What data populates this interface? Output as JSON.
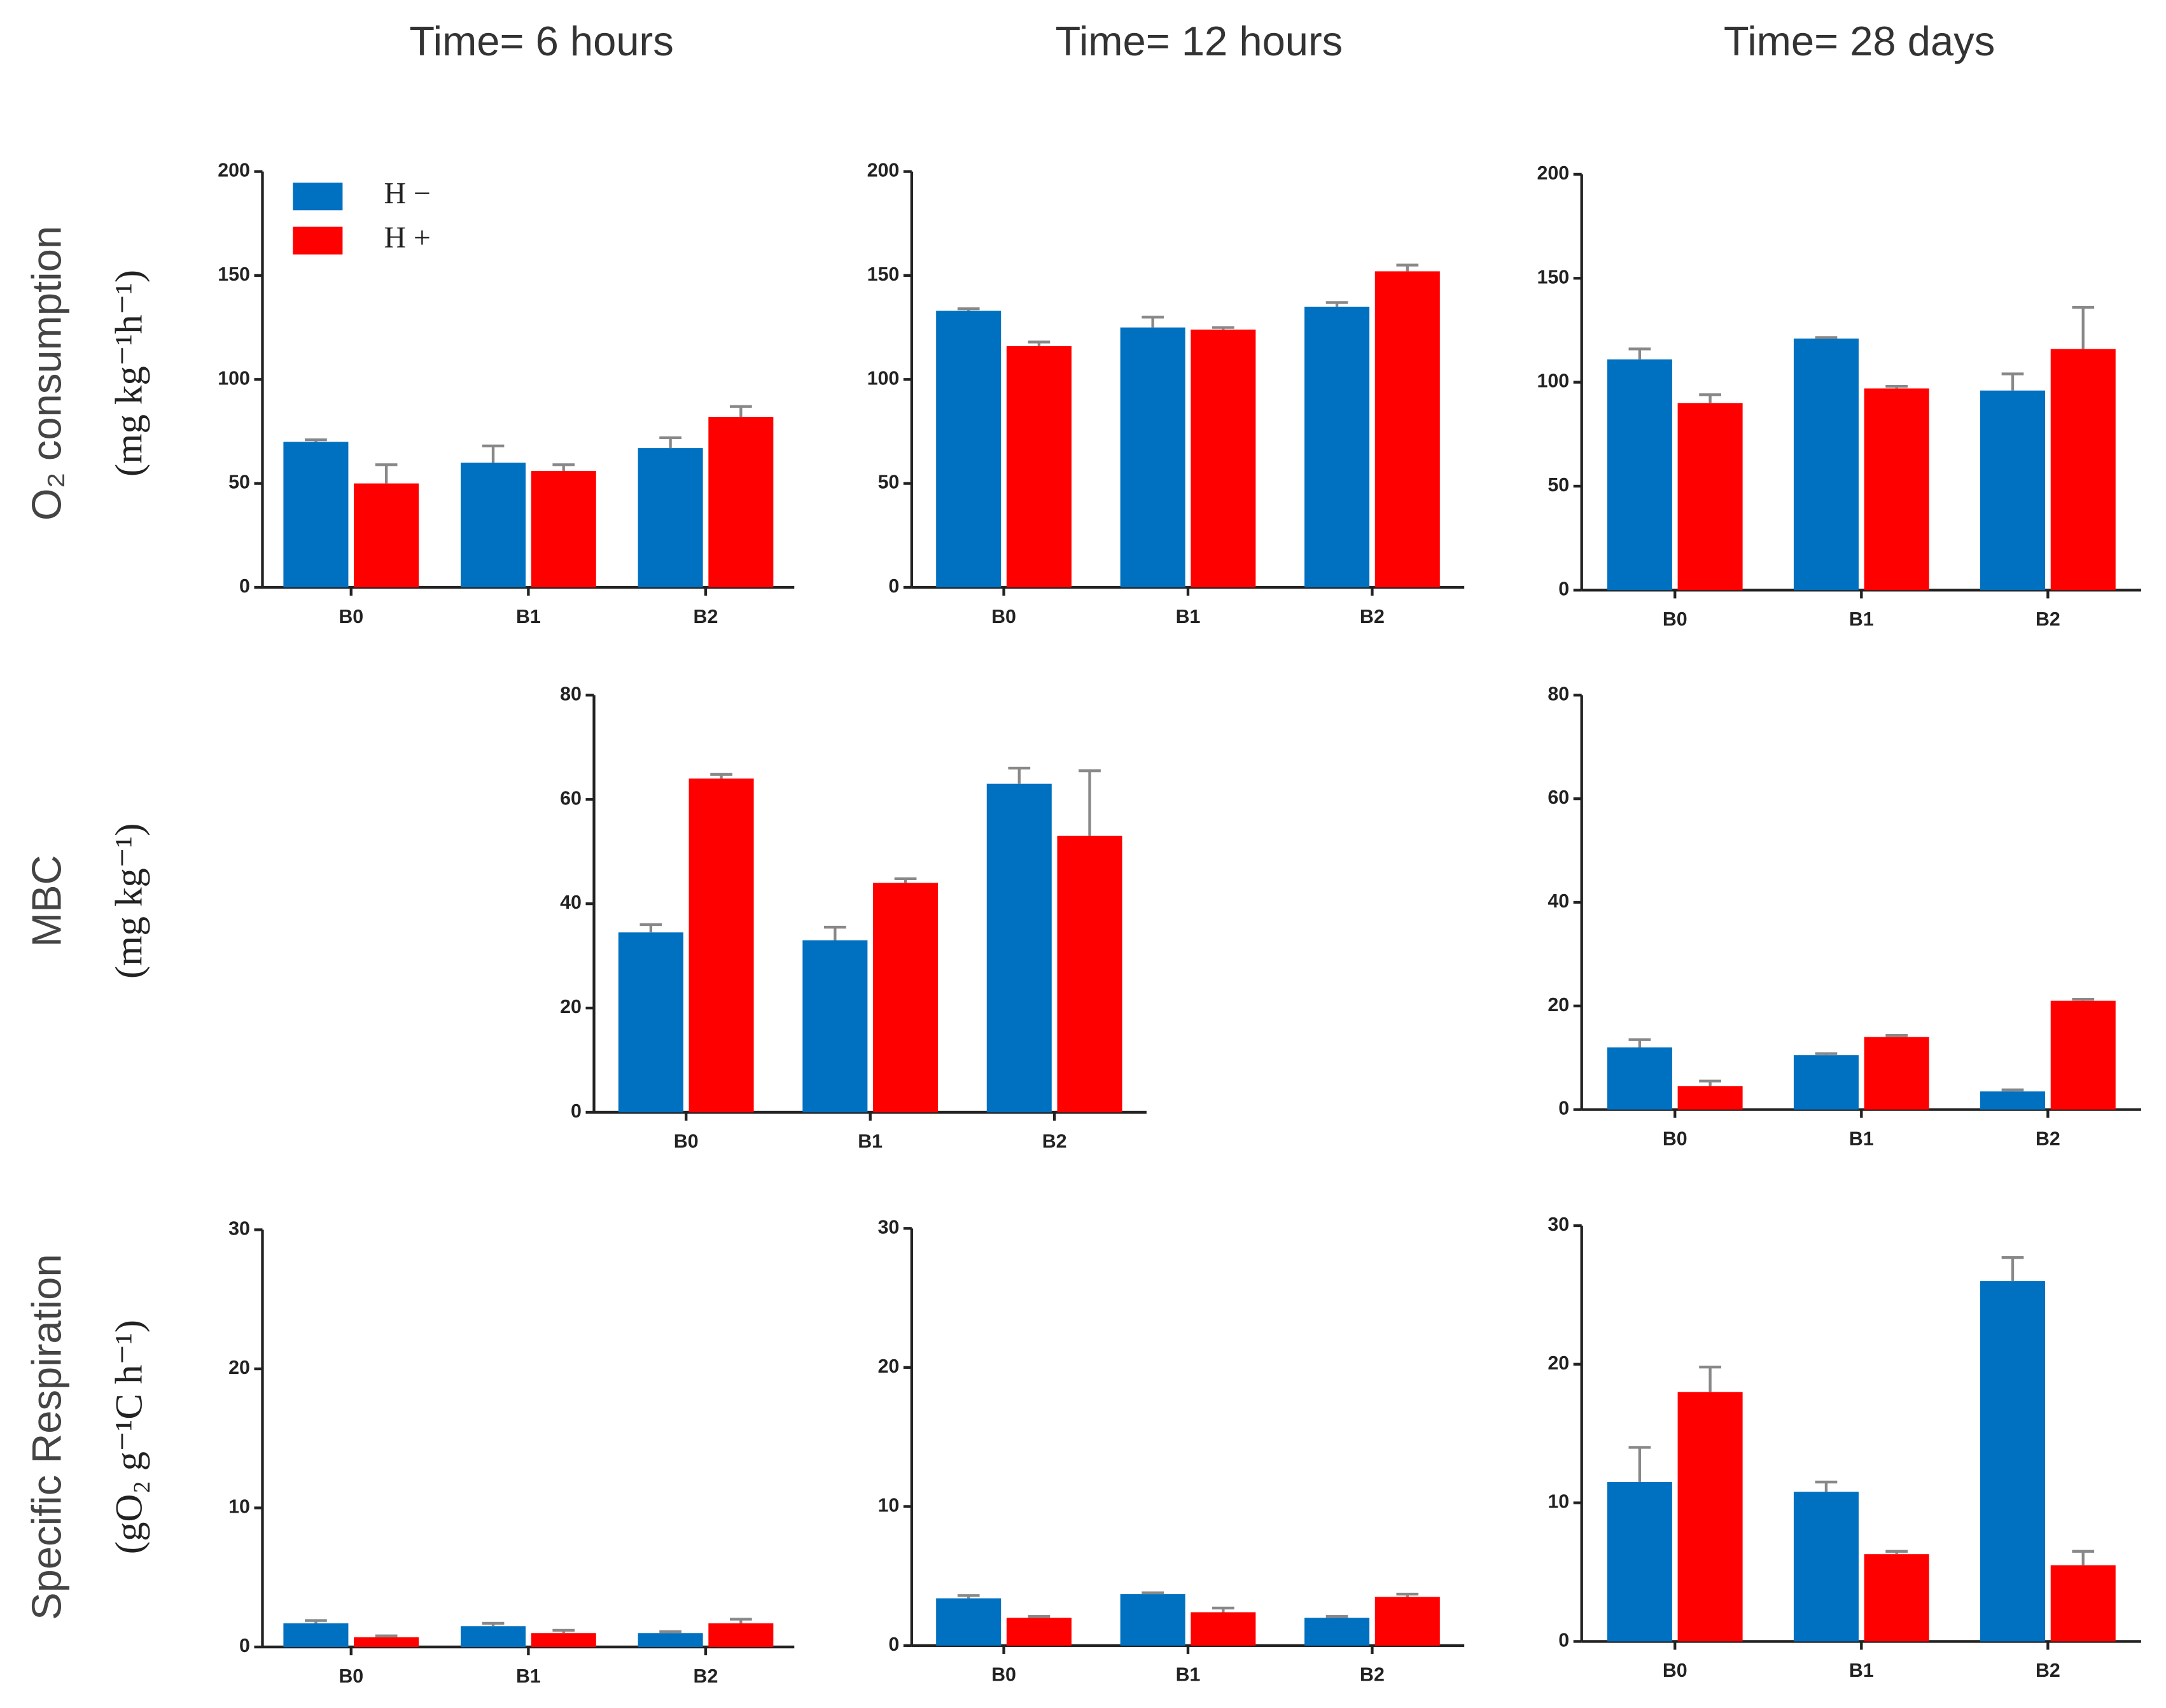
{
  "column_titles": [
    "Time= 6 hours",
    "Time= 12 hours",
    "Time= 28 days"
  ],
  "row_labels": [
    {
      "title": "O₂ consumption",
      "unit": "(mg kg⁻¹h⁻¹)"
    },
    {
      "title": "MBC",
      "unit": "(mg kg⁻¹)"
    },
    {
      "title": "Specific Respiration",
      "unit": "(gO₂ g⁻¹C h⁻¹)"
    }
  ],
  "chart_data": [
    {
      "type": "bar",
      "categories": [
        "B0",
        "B1",
        "B2"
      ],
      "ylim": [
        0,
        200
      ],
      "yticks": [
        0,
        50,
        100,
        150,
        200
      ],
      "legend": "upper left",
      "series": [
        {
          "name": "H −",
          "color": "#0070c0",
          "values": [
            70,
            60,
            67
          ],
          "errors": [
            1,
            8,
            5
          ]
        },
        {
          "name": "H +",
          "color": "#ff0000",
          "values": [
            50,
            56,
            82
          ],
          "errors": [
            9,
            3,
            5
          ]
        }
      ]
    },
    {
      "type": "bar",
      "categories": [
        "B0",
        "B1",
        "B2"
      ],
      "ylim": [
        0,
        200
      ],
      "yticks": [
        0,
        50,
        100,
        150,
        200
      ],
      "series": [
        {
          "color": "#0070c0",
          "values": [
            133,
            125,
            135
          ],
          "errors": [
            1,
            5,
            2
          ]
        },
        {
          "color": "#ff0000",
          "values": [
            116,
            124,
            152
          ],
          "errors": [
            2,
            1,
            3
          ]
        }
      ]
    },
    {
      "type": "bar",
      "categories": [
        "B0",
        "B1",
        "B2"
      ],
      "ylim": [
        0,
        200
      ],
      "yticks": [
        0,
        50,
        100,
        150,
        200
      ],
      "series": [
        {
          "color": "#0070c0",
          "values": [
            111,
            121,
            96
          ],
          "errors": [
            5,
            0.5,
            8
          ]
        },
        {
          "color": "#ff0000",
          "values": [
            90,
            97,
            116
          ],
          "errors": [
            4,
            1,
            20
          ]
        }
      ]
    },
    {
      "type": "bar",
      "categories": [
        "B0",
        "B1",
        "B2"
      ],
      "ylim": [
        0,
        80
      ],
      "yticks": [
        0,
        20,
        40,
        60,
        80
      ],
      "series": [
        {
          "color": "#0070c0",
          "values": [
            34.5,
            33,
            63
          ],
          "errors": [
            1.5,
            2.5,
            3
          ]
        },
        {
          "color": "#ff0000",
          "values": [
            64,
            44,
            53
          ],
          "errors": [
            0.8,
            0.8,
            12.5
          ]
        }
      ]
    },
    {
      "type": "bar",
      "categories": [
        "B0",
        "B1",
        "B2"
      ],
      "ylim": [
        0,
        80
      ],
      "yticks": [
        0,
        20,
        40,
        60,
        80
      ],
      "series": [
        {
          "color": "#0070c0",
          "values": [
            12,
            10.5,
            3.5
          ],
          "errors": [
            1.5,
            0.3,
            0.3
          ]
        },
        {
          "color": "#ff0000",
          "values": [
            4.5,
            14,
            21
          ],
          "errors": [
            1,
            0.3,
            0.3
          ]
        }
      ]
    },
    {
      "type": "bar",
      "categories": [
        "B0",
        "B1",
        "B2"
      ],
      "ylim": [
        0,
        30
      ],
      "yticks": [
        0,
        10,
        20,
        30
      ],
      "series": [
        {
          "color": "#0070c0",
          "values": [
            1.7,
            1.5,
            1.0
          ],
          "errors": [
            0.2,
            0.2,
            0.1
          ]
        },
        {
          "color": "#ff0000",
          "values": [
            0.7,
            1.0,
            1.7
          ],
          "errors": [
            0.1,
            0.2,
            0.3
          ]
        }
      ]
    },
    {
      "type": "bar",
      "categories": [
        "B0",
        "B1",
        "B2"
      ],
      "ylim": [
        0,
        30
      ],
      "yticks": [
        0,
        10,
        20,
        30
      ],
      "series": [
        {
          "color": "#0070c0",
          "values": [
            3.4,
            3.7,
            2.0
          ],
          "errors": [
            0.2,
            0.1,
            0.1
          ]
        },
        {
          "color": "#ff0000",
          "values": [
            2.0,
            2.4,
            3.5
          ],
          "errors": [
            0.1,
            0.3,
            0.2
          ]
        }
      ]
    },
    {
      "type": "bar",
      "categories": [
        "B0",
        "B1",
        "B2"
      ],
      "ylim": [
        0,
        30
      ],
      "yticks": [
        0,
        10,
        20,
        30
      ],
      "series": [
        {
          "color": "#0070c0",
          "values": [
            11.5,
            10.8,
            26
          ],
          "errors": [
            2.5,
            0.7,
            1.7
          ]
        },
        {
          "color": "#ff0000",
          "values": [
            18,
            6.3,
            5.5
          ],
          "errors": [
            1.8,
            0.2,
            1
          ]
        }
      ]
    }
  ]
}
